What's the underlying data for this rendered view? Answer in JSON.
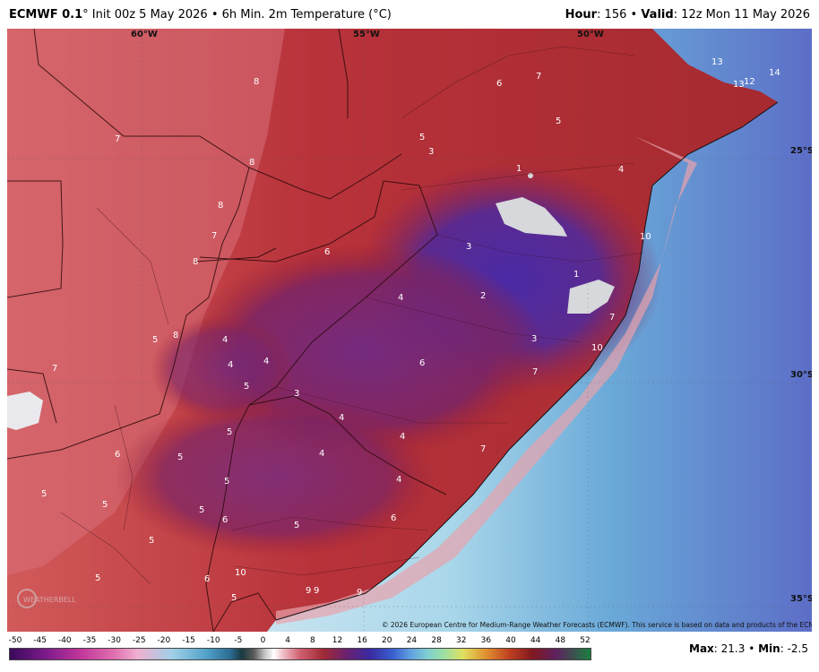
{
  "header": {
    "model": "ECMWF 0.1",
    "init": "° Init 00z 5 May 2026",
    "separator": "•",
    "field": "6h Min. 2m Temperature (°C)",
    "hour_label": "Hour",
    "hour_value": ": 156",
    "valid_label": "Valid",
    "valid_value": ": 12z Mon 11 May 2026"
  },
  "map": {
    "longitudes": [
      "60°W",
      "55°W",
      "50°W"
    ],
    "latitudes": [
      "25°S",
      "30°S",
      "35°S"
    ],
    "copyright": "© 2026 European Centre for Medium-Range Weather Forecasts (ECMWF). This service is based on data and products of the ECMWF.",
    "contour_labels": [
      "8",
      "7",
      "6",
      "7",
      "13",
      "14",
      "13",
      "12",
      "5",
      "3",
      "5",
      "1",
      "4",
      "8",
      "8",
      "8",
      "7",
      "3",
      "6",
      "10",
      "8",
      "1",
      "4",
      "2",
      "7",
      "5",
      "4",
      "3",
      "10",
      "7",
      "4",
      "4",
      "6",
      "7",
      "5",
      "3",
      "5",
      "4",
      "4",
      "4",
      "6",
      "5",
      "7",
      "4",
      "5",
      "5",
      "5",
      "6",
      "5",
      "5",
      "5",
      "6",
      "10",
      "5",
      "6",
      "9",
      "9",
      "9",
      "5"
    ],
    "logo_text": "WEATHERBELL"
  },
  "legend": {
    "ticks": [
      "-50",
      "-45",
      "-40",
      "-35",
      "-30",
      "-25",
      "-20",
      "-15",
      "-10",
      "-5",
      "0",
      "4",
      "8",
      "12",
      "16",
      "20",
      "24",
      "28",
      "32",
      "36",
      "40",
      "44",
      "48",
      "52"
    ]
  },
  "stats": {
    "max_label": "Max",
    "max_value": ": 21.3",
    "sep": "•",
    "min_label": "Min",
    "min_value": ": -2.5"
  }
}
